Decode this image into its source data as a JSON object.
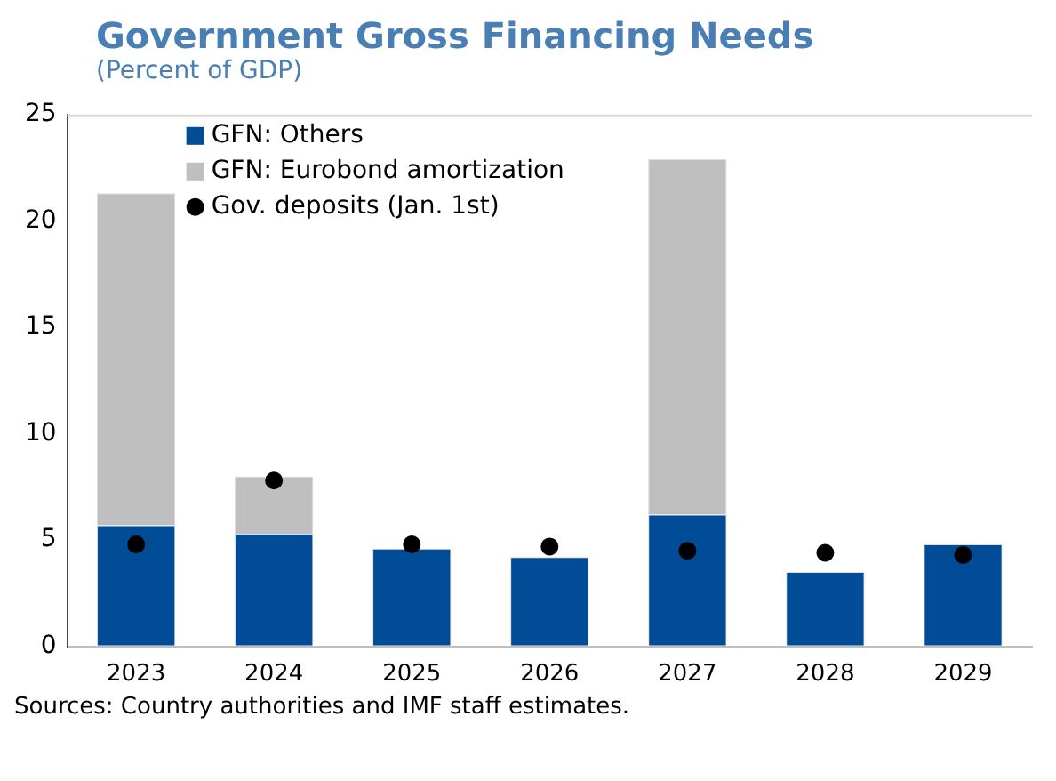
{
  "chart_data": {
    "type": "bar",
    "title": "Government Gross Financing Needs",
    "subtitle": "(Percent of GDP)",
    "categories": [
      "2023",
      "2024",
      "2025",
      "2026",
      "2027",
      "2028",
      "2029"
    ],
    "stacked": true,
    "series": [
      {
        "name": "GFN: Others",
        "color": "#004c97",
        "values": [
          5.7,
          5.3,
          4.6,
          4.2,
          6.2,
          3.5,
          4.8
        ]
      },
      {
        "name": "GFN: Eurobond amortization",
        "color": "#bfbfbf",
        "values": [
          15.6,
          2.7,
          null,
          null,
          16.7,
          null,
          null
        ]
      },
      {
        "name": "Gov. deposits (Jan. 1st)",
        "type": "scatter",
        "color": "#000000",
        "marker": "circle",
        "values": [
          4.8,
          7.8,
          4.8,
          4.7,
          4.5,
          4.4,
          4.3
        ]
      }
    ],
    "ylim": [
      0,
      25
    ],
    "yticks": [
      0,
      5,
      10,
      15,
      20,
      25
    ],
    "grid": false,
    "legend": "top left",
    "annotations": [
      "Sources: Country authorities and IMF staff estimates."
    ]
  }
}
